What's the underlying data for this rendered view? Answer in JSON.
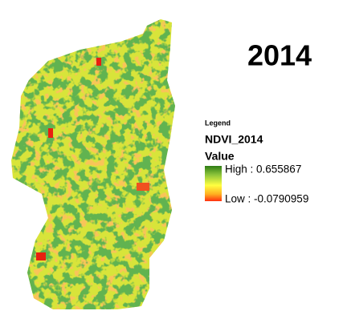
{
  "title": "2014",
  "legend": {
    "heading": "Legend",
    "layer": "NDVI_2014",
    "field": "Value",
    "high": "High : 0.655867",
    "low": "Low : -0.0790959"
  }
}
